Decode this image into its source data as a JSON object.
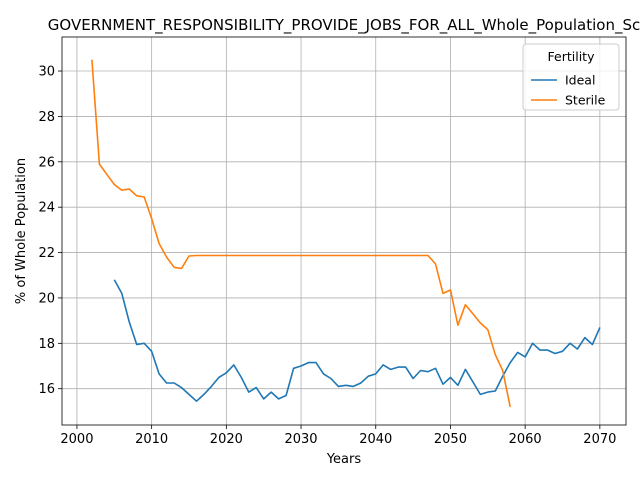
{
  "chart_data": {
    "type": "line",
    "title": "GOVERNMENT_RESPONSIBILITY_PROVIDE_JOBS_FOR_ALL_Whole_Population_Sc",
    "xlabel": "Years",
    "ylabel": "% of Whole Population",
    "xlim": [
      1998,
      2073.5
    ],
    "ylim": [
      14.4,
      31.5
    ],
    "xticks": [
      2000,
      2010,
      2020,
      2030,
      2040,
      2050,
      2060,
      2070
    ],
    "yticks": [
      16,
      18,
      20,
      22,
      24,
      26,
      28,
      30
    ],
    "grid": true,
    "legend": {
      "title": "Fertility",
      "position": "top-right"
    },
    "series": [
      {
        "name": "Ideal",
        "color": "#1f77b4",
        "x": [
          2005,
          2006,
          2007,
          2008,
          2009,
          2010,
          2011,
          2012,
          2013,
          2014,
          2015,
          2016,
          2017,
          2018,
          2019,
          2020,
          2021,
          2022,
          2023,
          2024,
          2025,
          2026,
          2027,
          2028,
          2029,
          2030,
          2031,
          2032,
          2033,
          2034,
          2035,
          2036,
          2037,
          2038,
          2039,
          2040,
          2041,
          2042,
          2043,
          2044,
          2045,
          2046,
          2047,
          2048,
          2049,
          2050,
          2051,
          2052,
          2053,
          2054,
          2055,
          2056,
          2057,
          2058,
          2059,
          2060,
          2061,
          2062,
          2063,
          2064,
          2065,
          2066,
          2067,
          2068,
          2069,
          2070
        ],
        "values": [
          20.8,
          20.2,
          18.95,
          17.95,
          18.0,
          17.65,
          16.65,
          16.25,
          16.25,
          16.05,
          15.75,
          15.45,
          15.75,
          16.1,
          16.5,
          16.7,
          17.05,
          16.5,
          15.85,
          16.05,
          15.55,
          15.85,
          15.55,
          15.7,
          16.9,
          17.0,
          17.15,
          17.15,
          16.65,
          16.45,
          16.1,
          16.15,
          16.1,
          16.25,
          16.55,
          16.65,
          17.05,
          16.85,
          16.95,
          16.95,
          16.45,
          16.8,
          16.75,
          16.9,
          16.2,
          16.5,
          16.15,
          16.85,
          16.3,
          15.75,
          15.85,
          15.9,
          16.55,
          17.15,
          17.6,
          17.4,
          18.0,
          17.7,
          17.7,
          17.55,
          17.65,
          18.0,
          17.75,
          18.25,
          17.95,
          18.7
        ]
      },
      {
        "name": "Sterile",
        "color": "#ff7f0e",
        "x": [
          2002,
          2003,
          2004,
          2005,
          2006,
          2007,
          2008,
          2009,
          2010,
          2011,
          2012,
          2013,
          2014,
          2015,
          2016,
          2020,
          2025,
          2030,
          2035,
          2040,
          2045,
          2047,
          2048,
          2049,
          2050,
          2051,
          2052,
          2053,
          2054,
          2055,
          2056,
          2057,
          2058
        ],
        "values": [
          30.5,
          25.9,
          25.45,
          25.0,
          24.75,
          24.8,
          24.5,
          24.45,
          23.5,
          22.4,
          21.8,
          21.35,
          21.3,
          21.85,
          21.87,
          21.87,
          21.87,
          21.87,
          21.87,
          21.87,
          21.87,
          21.87,
          21.5,
          20.2,
          20.35,
          18.8,
          19.7,
          19.3,
          18.9,
          18.6,
          17.5,
          16.8,
          15.2
        ]
      }
    ]
  }
}
